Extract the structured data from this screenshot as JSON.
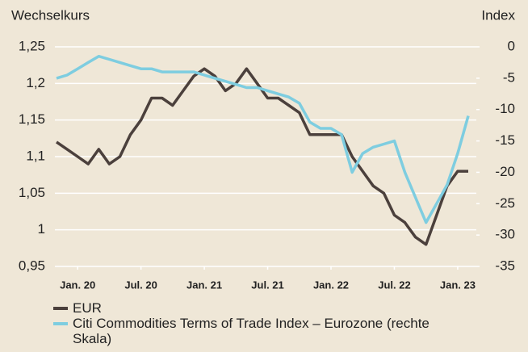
{
  "chart_data": {
    "type": "line",
    "y_label": "Wechselkurs",
    "y2_label": "Index",
    "x": [
      "2019-11",
      "2019-12",
      "2020-01",
      "2020-02",
      "2020-03",
      "2020-04",
      "2020-05",
      "2020-06",
      "2020-07",
      "2020-08",
      "2020-09",
      "2020-10",
      "2020-11",
      "2020-12",
      "2021-01",
      "2021-02",
      "2021-03",
      "2021-04",
      "2021-05",
      "2021-06",
      "2021-07",
      "2021-08",
      "2021-09",
      "2021-10",
      "2021-11",
      "2021-12",
      "2022-01",
      "2022-02",
      "2022-03",
      "2022-04",
      "2022-05",
      "2022-06",
      "2022-07",
      "2022-08",
      "2022-09",
      "2022-10",
      "2022-11",
      "2022-12",
      "2023-01",
      "2023-02"
    ],
    "xticks": [
      {
        "value": "2020-01",
        "label": "Jan. 20"
      },
      {
        "value": "2020-07",
        "label": "Jul. 20"
      },
      {
        "value": "2021-01",
        "label": "Jan. 21"
      },
      {
        "value": "2021-07",
        "label": "Jul. 21"
      },
      {
        "value": "2022-01",
        "label": "Jan. 22"
      },
      {
        "value": "2022-07",
        "label": "Jul. 22"
      },
      {
        "value": "2023-01",
        "label": "Jan. 23"
      }
    ],
    "ylim": [
      0.95,
      1.25
    ],
    "yticks": [
      {
        "value": 0.95,
        "label": "0,95"
      },
      1,
      {
        "value": 1.05,
        "label": "1,05"
      },
      {
        "value": 1.1,
        "label": "1,1"
      },
      {
        "value": 1.15,
        "label": "1,15"
      },
      {
        "value": 1.2,
        "label": "1,2"
      },
      {
        "value": 1.25,
        "label": "1,25"
      }
    ],
    "y2lim": [
      -35,
      0
    ],
    "y2ticks": [
      -35,
      -30,
      -25,
      -20,
      -15,
      -10,
      -5,
      0
    ],
    "grid": true,
    "series": [
      {
        "name": "EUR",
        "color": "#4b403c",
        "values": [
          1.12,
          1.11,
          1.1,
          1.09,
          1.11,
          1.09,
          1.1,
          1.13,
          1.15,
          1.18,
          1.18,
          1.17,
          1.19,
          1.21,
          1.22,
          1.21,
          1.19,
          1.2,
          1.22,
          1.2,
          1.18,
          1.18,
          1.17,
          1.16,
          1.13,
          1.13,
          1.13,
          1.13,
          1.1,
          1.08,
          1.06,
          1.05,
          1.02,
          1.01,
          0.99,
          0.98,
          1.02,
          1.06,
          1.08,
          1.08
        ]
      },
      {
        "name": "Citi Commodities Terms of Trade Index – Eurozone (rechte Skala)",
        "color": "#7ecde0",
        "axis": "y2",
        "values": [
          -5,
          -4.5,
          -3.5,
          -2.5,
          -1.5,
          -2,
          -2.5,
          -3,
          -3.5,
          -3.5,
          -4,
          -4,
          -4,
          -4,
          -4.5,
          -5,
          -5.5,
          -6,
          -6.5,
          -6.5,
          -7,
          -7.5,
          -8,
          -9,
          -12,
          -13,
          -13,
          -14,
          -20,
          -17,
          -16,
          -15.5,
          -15,
          -20,
          -24,
          -28,
          -25,
          -22,
          -17,
          -11
        ]
      }
    ]
  }
}
